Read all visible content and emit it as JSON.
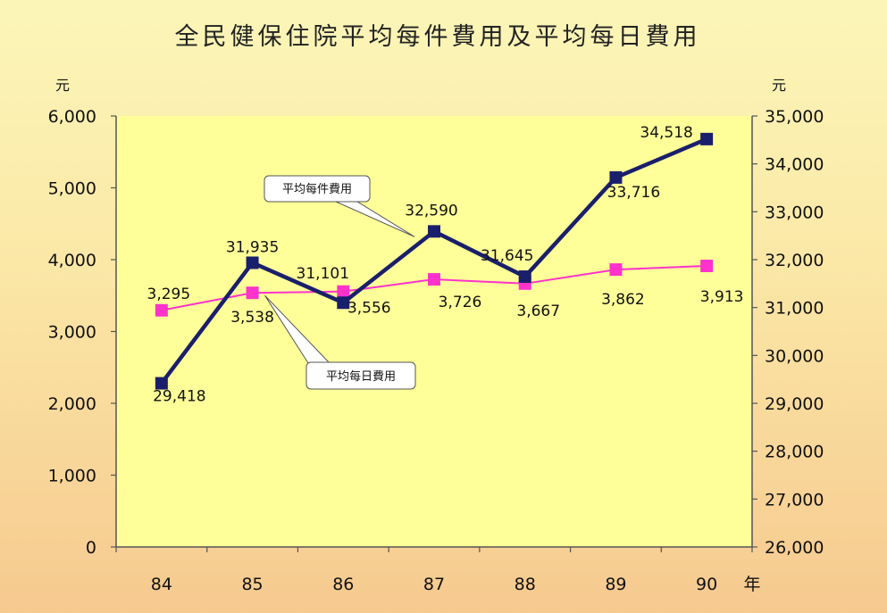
{
  "title": "全民健保住院平均每件費用及平均每日費用",
  "chart_data": {
    "type": "line",
    "title": "全民健保住院平均每件費用及平均每日費用",
    "categories": [
      "84",
      "85",
      "86",
      "87",
      "88",
      "89",
      "90"
    ],
    "x_unit": "年",
    "y_left": {
      "unit": "元",
      "ylim": [
        0,
        6000
      ],
      "ticks": [
        "0",
        "1,000",
        "2,000",
        "3,000",
        "4,000",
        "5,000",
        "6,000"
      ]
    },
    "y_right": {
      "unit": "元",
      "ylim": [
        26000,
        35000
      ],
      "ticks": [
        "26,000",
        "27,000",
        "28,000",
        "29,000",
        "30,000",
        "31,000",
        "32,000",
        "33,000",
        "34,000",
        "35,000"
      ]
    },
    "series": [
      {
        "name": "平均每件費用",
        "axis": "right",
        "color": "#1a1f6b",
        "values": [
          29418,
          31935,
          31101,
          32590,
          31645,
          33716,
          34518
        ],
        "labels": [
          "29,418",
          "31,935",
          "31,101",
          "32,590",
          "31,645",
          "33,716",
          "34,518"
        ]
      },
      {
        "name": "平均每日費用",
        "axis": "left",
        "color": "#ff33cc",
        "values": [
          3295,
          3538,
          3556,
          3726,
          3667,
          3862,
          3913
        ],
        "labels": [
          "3,295",
          "3,538",
          "3,556",
          "3,726",
          "3,667",
          "3,862",
          "3,913"
        ]
      }
    ],
    "plot_background": "#ffff99",
    "grid": false
  }
}
